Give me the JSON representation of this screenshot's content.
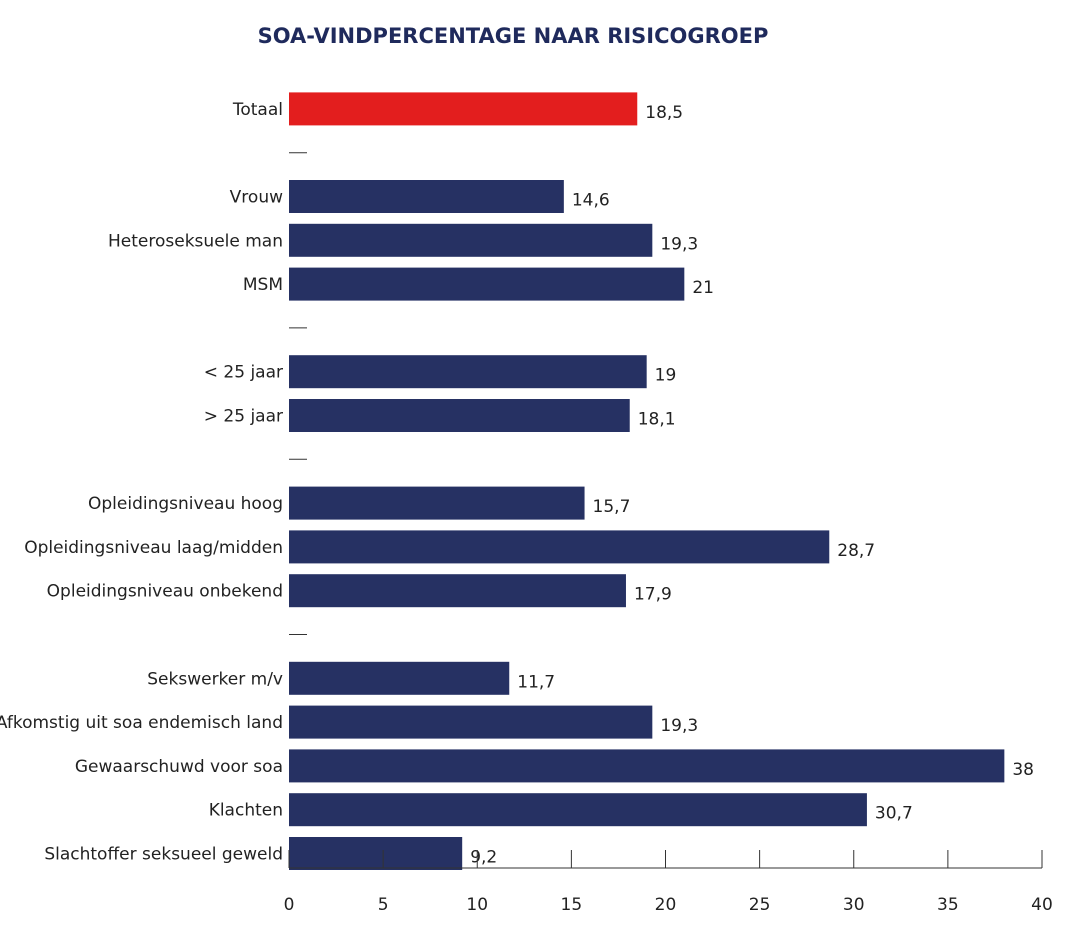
{
  "chart_data": {
    "type": "bar",
    "orientation": "horizontal",
    "title": "SOA-VINDPERCENTAGE NAAR RISICOGROEP",
    "xlabel": "",
    "ylabel": "",
    "xlim": [
      0,
      40
    ],
    "x_ticks": [
      0,
      5,
      10,
      15,
      20,
      25,
      30,
      35,
      40
    ],
    "x_tick_labels": [
      "0",
      "5",
      "10",
      "15",
      "20",
      "25",
      "30",
      "35",
      "40"
    ],
    "grid": false,
    "legend": "none",
    "colors": {
      "highlight": "#e31e1e",
      "bar": "#263163"
    },
    "rows": [
      {
        "label": "Totaal",
        "value": 18.5,
        "value_label": "18,5",
        "highlight": true
      },
      {
        "gap": true
      },
      {
        "label": "Vrouw",
        "value": 14.6,
        "value_label": "14,6"
      },
      {
        "label": "Heteroseksuele man",
        "value": 19.3,
        "value_label": "19,3"
      },
      {
        "label": "MSM",
        "value": 21,
        "value_label": "21"
      },
      {
        "gap": true
      },
      {
        "label": "< 25 jaar",
        "value": 19,
        "value_label": "19"
      },
      {
        "label": "> 25 jaar",
        "value": 18.1,
        "value_label": "18,1"
      },
      {
        "gap": true
      },
      {
        "label": "Opleidingsniveau hoog",
        "value": 15.7,
        "value_label": "15,7"
      },
      {
        "label": "Opleidingsniveau laag/midden",
        "value": 28.7,
        "value_label": "28,7"
      },
      {
        "label": "Opleidingsniveau onbekend",
        "value": 17.9,
        "value_label": "17,9"
      },
      {
        "gap": true
      },
      {
        "label": "Sekswerker m/v",
        "value": 11.7,
        "value_label": "11,7"
      },
      {
        "label": "Afkomstig uit soa endemisch land",
        "value": 19.3,
        "value_label": "19,3"
      },
      {
        "label": "Gewaarschuwd voor soa",
        "value": 38,
        "value_label": "38"
      },
      {
        "label": "Klachten",
        "value": 30.7,
        "value_label": "30,7"
      },
      {
        "label": "Slachtoffer seksueel geweld",
        "value": 9.2,
        "value_label": "9,2"
      }
    ]
  }
}
